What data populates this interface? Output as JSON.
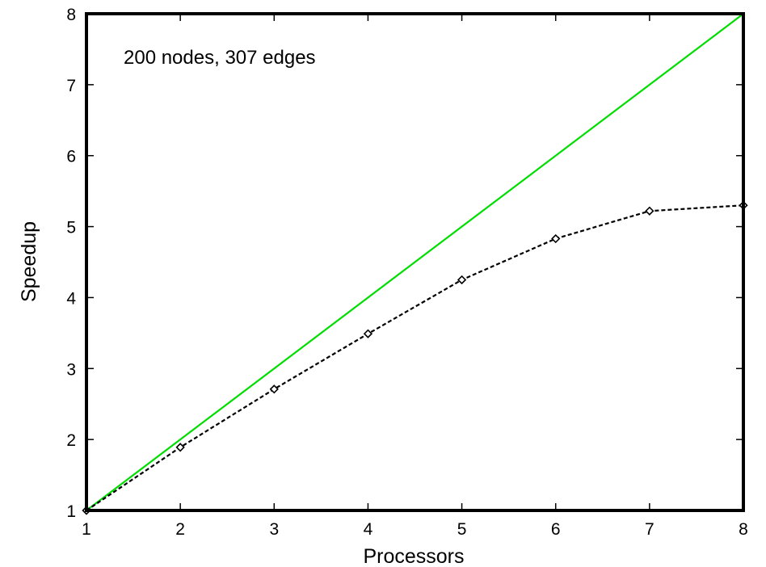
{
  "chart_data": {
    "type": "line",
    "title": "",
    "annotation": "200 nodes, 307 edges",
    "xlabel": "Processors",
    "ylabel": "Speedup",
    "xlim": [
      1,
      8
    ],
    "ylim": [
      1,
      8
    ],
    "x_ticks": [
      "1",
      "2",
      "3",
      "4",
      "5",
      "6",
      "7",
      "8"
    ],
    "y_ticks": [
      "1",
      "2",
      "3",
      "4",
      "5",
      "6",
      "7",
      "8"
    ],
    "grid": false,
    "legend": "none",
    "series": [
      {
        "style": "solid",
        "color": "#00dd00",
        "marker": "none",
        "points": [
          [
            1,
            1
          ],
          [
            8,
            8
          ]
        ]
      },
      {
        "style": "dashed",
        "color": "#000000",
        "marker": "diamond",
        "points": [
          [
            1,
            1.0
          ],
          [
            2,
            1.89
          ],
          [
            3,
            2.71
          ],
          [
            4,
            3.49
          ],
          [
            5,
            4.25
          ],
          [
            6,
            4.83
          ],
          [
            7,
            5.22
          ],
          [
            8,
            5.3
          ]
        ]
      }
    ]
  }
}
